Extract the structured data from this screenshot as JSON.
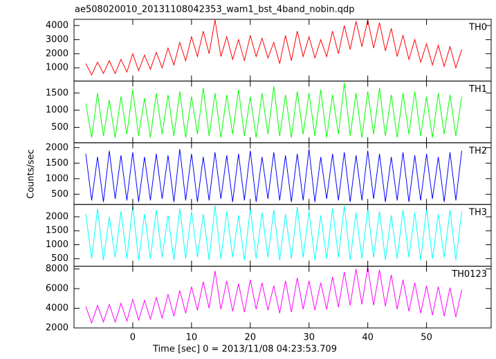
{
  "title": "ae508020010_20131108042353_wam1_bst_4band_nobin.qdp",
  "xlabel": "Time [sec] 0 = 2013/11/08 04:23:53.709",
  "ylabel": "Counts/sec",
  "xlim": [
    -10,
    61
  ],
  "xticks": [
    0,
    10,
    20,
    30,
    40,
    50
  ],
  "chart_data": [
    {
      "type": "line",
      "x": [
        -8,
        -7,
        -6,
        -5,
        -4,
        -3,
        -2,
        -1,
        0,
        1,
        2,
        3,
        4,
        5,
        6,
        7,
        8,
        9,
        10,
        11,
        12,
        13,
        14,
        15,
        16,
        17,
        18,
        19,
        20,
        21,
        22,
        23,
        24,
        25,
        26,
        27,
        28,
        29,
        30,
        31,
        32,
        33,
        34,
        35,
        36,
        37,
        38,
        39,
        40,
        41,
        42,
        43,
        44,
        45,
        46,
        47,
        48,
        49,
        50,
        51,
        52,
        53,
        54,
        55,
        56
      ],
      "series": [
        {
          "name": "TH0",
          "color": "#ff0000",
          "values": [
            1300,
            500,
            1400,
            600,
            1500,
            600,
            1600,
            700,
            2000,
            800,
            1900,
            900,
            2100,
            1000,
            2400,
            1200,
            2800,
            1500,
            3200,
            1800,
            3600,
            2000,
            4400,
            1800,
            3200,
            1600,
            3000,
            1500,
            3300,
            1800,
            3100,
            1700,
            2800,
            1300,
            3300,
            1500,
            3600,
            1800,
            3200,
            1700,
            3000,
            1800,
            3600,
            2000,
            4000,
            2300,
            4300,
            2500,
            4400,
            2400,
            4200,
            2200,
            3800,
            1800,
            3300,
            1600,
            3000,
            1400,
            2700,
            1200,
            2600,
            1100,
            2500,
            1000,
            2300
          ]
        }
      ],
      "ylim": [
        60,
        4440
      ],
      "yticks": [
        1000,
        2000,
        3000,
        4000
      ]
    },
    {
      "type": "line",
      "x": [
        -8,
        -7,
        -6,
        -5,
        -4,
        -3,
        -2,
        -1,
        0,
        1,
        2,
        3,
        4,
        5,
        6,
        7,
        8,
        9,
        10,
        11,
        12,
        13,
        14,
        15,
        16,
        17,
        18,
        19,
        20,
        21,
        22,
        23,
        24,
        25,
        26,
        27,
        28,
        29,
        30,
        31,
        32,
        33,
        34,
        35,
        36,
        37,
        38,
        39,
        40,
        41,
        42,
        43,
        44,
        45,
        46,
        47,
        48,
        49,
        50,
        51,
        52,
        53,
        54,
        55,
        56
      ],
      "series": [
        {
          "name": "TH1",
          "color": "#00ff00",
          "values": [
            1200,
            200,
            1500,
            250,
            1300,
            200,
            1400,
            300,
            1600,
            250,
            1350,
            200,
            1500,
            300,
            1450,
            250,
            1550,
            200,
            1400,
            300,
            1650,
            250,
            1500,
            200,
            1450,
            300,
            1600,
            250,
            1400,
            200,
            1500,
            300,
            1700,
            250,
            1450,
            200,
            1550,
            300,
            1500,
            250,
            1600,
            200,
            1450,
            300,
            1800,
            250,
            1500,
            200,
            1550,
            300,
            1650,
            250,
            1450,
            200,
            1500,
            300,
            1550,
            250,
            1400,
            200,
            1500,
            300,
            1450,
            250,
            1400
          ]
        }
      ],
      "ylim": [
        50,
        1850
      ],
      "yticks": [
        500,
        1000,
        1500
      ]
    },
    {
      "type": "line",
      "x": [
        -8,
        -7,
        -6,
        -5,
        -4,
        -3,
        -2,
        -1,
        0,
        1,
        2,
        3,
        4,
        5,
        6,
        7,
        8,
        9,
        10,
        11,
        12,
        13,
        14,
        15,
        16,
        17,
        18,
        19,
        20,
        21,
        22,
        23,
        24,
        25,
        26,
        27,
        28,
        29,
        30,
        31,
        32,
        33,
        34,
        35,
        36,
        37,
        38,
        39,
        40,
        41,
        42,
        43,
        44,
        45,
        46,
        47,
        48,
        49,
        50,
        51,
        52,
        53,
        54,
        55,
        56
      ],
      "series": [
        {
          "name": "TH2",
          "color": "#0000ff",
          "values": [
            1800,
            300,
            1700,
            250,
            1900,
            350,
            1750,
            300,
            1850,
            250,
            1700,
            300,
            1800,
            350,
            1750,
            250,
            1950,
            300,
            1800,
            250,
            1700,
            300,
            1850,
            350,
            1750,
            250,
            1800,
            300,
            1900,
            250,
            1700,
            350,
            1850,
            300,
            1750,
            250,
            1800,
            300,
            1950,
            250,
            1700,
            350,
            1800,
            300,
            1850,
            250,
            1750,
            300,
            1900,
            350,
            1800,
            250,
            1700,
            300,
            1850,
            250,
            1750,
            300,
            1800,
            350,
            1700,
            250,
            1850,
            300,
            1900
          ]
        }
      ],
      "ylim": [
        170,
        2155
      ],
      "yticks": [
        500,
        1000,
        1500,
        2000
      ]
    },
    {
      "type": "line",
      "x": [
        -8,
        -7,
        -6,
        -5,
        -4,
        -3,
        -2,
        -1,
        0,
        1,
        2,
        3,
        4,
        5,
        6,
        7,
        8,
        9,
        10,
        11,
        12,
        13,
        14,
        15,
        16,
        17,
        18,
        19,
        20,
        21,
        22,
        23,
        24,
        25,
        26,
        27,
        28,
        29,
        30,
        31,
        32,
        33,
        34,
        35,
        36,
        37,
        38,
        39,
        40,
        41,
        42,
        43,
        44,
        45,
        46,
        47,
        48,
        49,
        50,
        51,
        52,
        53,
        54,
        55,
        56
      ],
      "series": [
        {
          "name": "TH3",
          "color": "#00ffff",
          "values": [
            2100,
            500,
            2300,
            450,
            2000,
            550,
            2200,
            500,
            2400,
            450,
            2100,
            500,
            2250,
            550,
            2050,
            450,
            2300,
            500,
            2200,
            550,
            2100,
            450,
            2400,
            500,
            2200,
            550,
            2050,
            450,
            2300,
            500,
            2150,
            550,
            2250,
            450,
            2100,
            500,
            2350,
            550,
            2200,
            450,
            2050,
            500,
            2300,
            550,
            2400,
            450,
            2150,
            500,
            2300,
            550,
            2200,
            450,
            2050,
            500,
            2250,
            550,
            2150,
            450,
            2300,
            500,
            2100,
            550,
            2250,
            450,
            2200
          ]
        }
      ],
      "ylim": [
        230,
        2440
      ],
      "yticks": [
        500,
        1000,
        1500,
        2000
      ]
    },
    {
      "type": "line",
      "x": [
        -8,
        -7,
        -6,
        -5,
        -4,
        -3,
        -2,
        -1,
        0,
        1,
        2,
        3,
        4,
        5,
        6,
        7,
        8,
        9,
        10,
        11,
        12,
        13,
        14,
        15,
        16,
        17,
        18,
        19,
        20,
        21,
        22,
        23,
        24,
        25,
        26,
        27,
        28,
        29,
        30,
        31,
        32,
        33,
        34,
        35,
        36,
        37,
        38,
        39,
        40,
        41,
        42,
        43,
        44,
        45,
        46,
        47,
        48,
        49,
        50,
        51,
        52,
        53,
        54,
        55,
        56
      ],
      "series": [
        {
          "name": "TH0123",
          "color": "#ff00ff",
          "values": [
            4200,
            2500,
            4300,
            2600,
            4400,
            2600,
            4500,
            2700,
            4900,
            2800,
            4800,
            2900,
            5100,
            3000,
            5400,
            3200,
            5800,
            3500,
            6200,
            3800,
            6700,
            4000,
            7800,
            3900,
            6800,
            3700,
            6500,
            3600,
            6900,
            3900,
            6600,
            3800,
            6300,
            3500,
            6800,
            3600,
            7100,
            3900,
            6800,
            3800,
            6600,
            3900,
            7200,
            4100,
            7700,
            4300,
            8000,
            4400,
            8200,
            4300,
            7900,
            4200,
            7400,
            3900,
            6900,
            3700,
            6600,
            3500,
            6300,
            3300,
            6200,
            3200,
            6100,
            3100,
            5900
          ]
        }
      ],
      "ylim": [
        2000,
        8280
      ],
      "yticks": [
        2000,
        4000,
        6000,
        8000
      ]
    }
  ]
}
